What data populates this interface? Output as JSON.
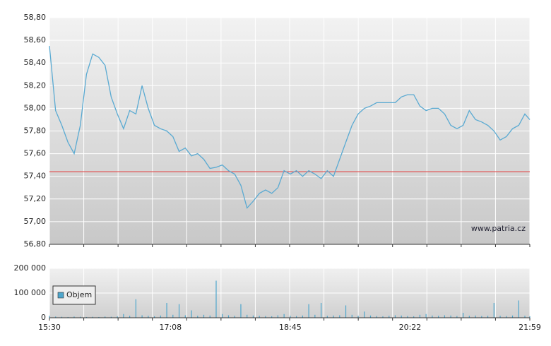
{
  "chart_data": [
    {
      "type": "line",
      "watermark": "www.patria.cz",
      "color": "#5aaad2",
      "x": [
        "15:30",
        "15:35",
        "15:40",
        "15:45",
        "15:50",
        "15:55",
        "16:00",
        "16:05",
        "16:10",
        "16:15",
        "16:20",
        "16:25",
        "16:30",
        "16:35",
        "16:40",
        "16:45",
        "16:50",
        "16:55",
        "17:00",
        "17:05",
        "17:10",
        "17:15",
        "17:20",
        "17:25",
        "17:30",
        "17:35",
        "17:40",
        "17:45",
        "17:50",
        "17:55",
        "18:00",
        "18:05",
        "18:10",
        "18:15",
        "18:20",
        "18:25",
        "18:30",
        "18:35",
        "18:40",
        "18:45",
        "18:50",
        "18:55",
        "19:00",
        "19:05",
        "19:10",
        "19:15",
        "19:20",
        "19:25",
        "19:30",
        "19:35",
        "19:40",
        "19:45",
        "19:50",
        "19:55",
        "20:00",
        "20:05",
        "20:10",
        "20:15",
        "20:20",
        "20:25",
        "20:30",
        "20:35",
        "20:40",
        "20:45",
        "20:50",
        "20:55",
        "21:00",
        "21:05",
        "21:10",
        "21:15",
        "21:20",
        "21:25",
        "21:30",
        "21:35",
        "21:40",
        "21:45",
        "21:50",
        "21:55",
        "21:59"
      ],
      "values": [
        58.55,
        57.98,
        57.85,
        57.7,
        57.6,
        57.85,
        58.3,
        58.48,
        58.45,
        58.38,
        58.1,
        57.95,
        57.82,
        57.98,
        57.95,
        58.2,
        58.0,
        57.85,
        57.82,
        57.8,
        57.75,
        57.62,
        57.65,
        57.58,
        57.6,
        57.55,
        57.47,
        57.48,
        57.5,
        57.45,
        57.42,
        57.32,
        57.12,
        57.18,
        57.25,
        57.28,
        57.25,
        57.3,
        57.45,
        57.42,
        57.45,
        57.4,
        57.45,
        57.42,
        57.38,
        57.45,
        57.4,
        57.55,
        57.7,
        57.85,
        57.95,
        58.0,
        58.02,
        58.05,
        58.05,
        58.05,
        58.05,
        58.1,
        58.12,
        58.12,
        58.02,
        57.98,
        58.0,
        58.0,
        57.95,
        57.85,
        57.82,
        57.85,
        57.98,
        57.9,
        57.88,
        57.85,
        57.8,
        57.72,
        57.75,
        57.82,
        57.85,
        57.95,
        57.9
      ],
      "xlim": [
        "15:30",
        "21:59"
      ],
      "ylim": [
        56.8,
        58.8
      ],
      "yticks": [
        {
          "value": 56.8,
          "label": "56,80"
        },
        {
          "value": 57.0,
          "label": "57,00"
        },
        {
          "value": 57.2,
          "label": "57,20"
        },
        {
          "value": 57.4,
          "label": "57,40"
        },
        {
          "value": 57.6,
          "label": "57,60"
        },
        {
          "value": 57.8,
          "label": "57,80"
        },
        {
          "value": 58.0,
          "label": "58,00"
        },
        {
          "value": 58.2,
          "label": "58,20"
        },
        {
          "value": 58.4,
          "label": "58,40"
        },
        {
          "value": 58.6,
          "label": "58,60"
        },
        {
          "value": 58.8,
          "label": "58,80"
        }
      ],
      "reference_line": {
        "value": 57.44,
        "color": "#e05050"
      },
      "grid": true
    },
    {
      "type": "bar",
      "x": [
        "15:30",
        "15:35",
        "15:40",
        "15:45",
        "15:50",
        "15:55",
        "16:00",
        "16:05",
        "16:10",
        "16:15",
        "16:20",
        "16:25",
        "16:30",
        "16:35",
        "16:40",
        "16:45",
        "16:50",
        "16:55",
        "17:00",
        "17:05",
        "17:10",
        "17:15",
        "17:20",
        "17:25",
        "17:30",
        "17:35",
        "17:40",
        "17:45",
        "17:50",
        "17:55",
        "18:00",
        "18:05",
        "18:10",
        "18:15",
        "18:20",
        "18:25",
        "18:30",
        "18:35",
        "18:40",
        "18:45",
        "18:50",
        "18:55",
        "19:00",
        "19:05",
        "19:10",
        "19:15",
        "19:20",
        "19:25",
        "19:30",
        "19:35",
        "19:40",
        "19:45",
        "19:50",
        "19:55",
        "20:00",
        "20:05",
        "20:10",
        "20:15",
        "20:20",
        "20:25",
        "20:30",
        "20:35",
        "20:40",
        "20:45",
        "20:50",
        "20:55",
        "21:00",
        "21:05",
        "21:10",
        "21:15",
        "21:20",
        "21:25",
        "21:30",
        "21:35",
        "21:40",
        "21:45",
        "21:50",
        "21:55",
        "21:59"
      ],
      "series": [
        {
          "name": "Objem",
          "color": "#4ea6cc",
          "values": [
            8000,
            5000,
            4000,
            3000,
            5000,
            4000,
            3000,
            4000,
            3000,
            5000,
            4000,
            6000,
            15000,
            8000,
            75000,
            10000,
            8000,
            6000,
            9000,
            60000,
            12000,
            55000,
            10000,
            30000,
            8000,
            12000,
            9000,
            150000,
            15000,
            10000,
            8000,
            55000,
            12000,
            9000,
            8000,
            7000,
            6000,
            10000,
            15000,
            8000,
            7000,
            9000,
            55000,
            12000,
            60000,
            8000,
            9000,
            10000,
            50000,
            12000,
            8000,
            25000,
            9000,
            7000,
            6000,
            8000,
            10000,
            9000,
            7000,
            6000,
            12000,
            15000,
            9000,
            8000,
            10000,
            9000,
            7000,
            20000,
            8000,
            9000,
            7000,
            8000,
            60000,
            8000,
            7000,
            9000,
            70000,
            8000,
            6000
          ]
        }
      ],
      "xlim": [
        "15:30",
        "21:59"
      ],
      "xticks": [
        "15:30",
        "17:08",
        "18:45",
        "20:22",
        "21:59"
      ],
      "ylim": [
        0,
        200000
      ],
      "yticks": [
        0,
        {
          "value": 100000,
          "label": "100 000"
        },
        {
          "value": 200000,
          "label": "200 000"
        }
      ],
      "legend": "upper left"
    }
  ]
}
